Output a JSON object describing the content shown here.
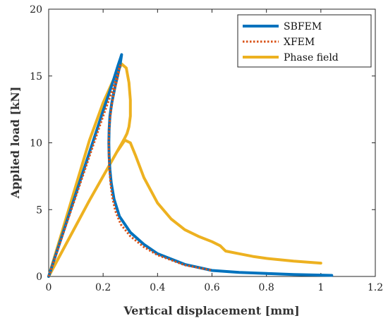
{
  "chart_data": {
    "type": "line",
    "xlabel": "Vertical displacement [mm]",
    "ylabel": "Applied load [kN]",
    "xlim": [
      0,
      1.2
    ],
    "ylim": [
      0,
      20
    ],
    "xticks": [
      0,
      0.2,
      0.4,
      0.6,
      0.8,
      1,
      1.2
    ],
    "yticks": [
      0,
      5,
      10,
      15,
      20
    ],
    "xtick_labels": [
      "0",
      "0.2",
      "0.4",
      "0.6",
      "0.8",
      "1",
      "1.2"
    ],
    "ytick_labels": [
      "0",
      "5",
      "10",
      "15",
      "20"
    ],
    "grid": false,
    "legend_position": "top-right",
    "series": [
      {
        "name": "SBFEM",
        "color": "#0072BD",
        "style": "solid",
        "x": [
          0,
          0.05,
          0.1,
          0.15,
          0.2,
          0.235,
          0.255,
          0.265,
          0.268,
          0.262,
          0.245,
          0.232,
          0.225,
          0.222,
          0.221,
          0.222,
          0.225,
          0.23,
          0.24,
          0.26,
          0.3,
          0.35,
          0.4,
          0.5,
          0.6,
          0.7,
          0.8,
          0.9,
          1.0,
          1.04
        ],
        "y": [
          0,
          3.1,
          6.2,
          9.3,
          12.4,
          14.5,
          15.8,
          16.4,
          16.6,
          15.8,
          14.3,
          13.0,
          12.0,
          11.0,
          10.0,
          9.0,
          8.0,
          7.0,
          5.8,
          4.5,
          3.3,
          2.4,
          1.7,
          0.9,
          0.45,
          0.3,
          0.22,
          0.15,
          0.1,
          0.08
        ]
      },
      {
        "name": "XFEM",
        "color": "#D95319",
        "style": "dotted",
        "x": [
          0,
          0.05,
          0.1,
          0.15,
          0.2,
          0.235,
          0.255,
          0.262,
          0.255,
          0.24,
          0.23,
          0.224,
          0.221,
          0.221,
          0.223,
          0.227,
          0.233,
          0.245,
          0.265,
          0.3,
          0.35,
          0.4,
          0.5,
          0.6
        ],
        "y": [
          0,
          3.0,
          6.0,
          9.0,
          12.0,
          14.0,
          15.3,
          15.8,
          15.0,
          13.8,
          12.6,
          11.5,
          10.3,
          9.2,
          8.1,
          7.0,
          6.0,
          4.9,
          3.9,
          3.0,
          2.2,
          1.6,
          0.85,
          0.45
        ]
      },
      {
        "name": "Phase field",
        "color": "#EDB120",
        "style": "solid",
        "x": [
          0,
          0.05,
          0.1,
          0.15,
          0.2,
          0.24,
          0.268,
          0.285,
          0.295,
          0.3,
          0.3,
          0.295,
          0.288,
          0.278,
          0.25,
          0.2,
          0.15,
          0.1,
          0.05,
          0,
          0.05,
          0.1,
          0.15,
          0.2,
          0.25,
          0.28,
          0.3,
          0.32,
          0.35,
          0.4,
          0.45,
          0.5,
          0.55,
          0.6,
          0.63,
          0.65,
          0.7,
          0.75,
          0.8,
          0.9,
          1.0
        ],
        "y": [
          0,
          3.4,
          6.8,
          10.2,
          13.0,
          14.8,
          15.9,
          15.6,
          14.5,
          13.2,
          12.0,
          11.2,
          10.7,
          10.3,
          9.3,
          7.5,
          5.7,
          3.8,
          1.9,
          0,
          1.9,
          3.8,
          5.7,
          7.5,
          9.3,
          10.2,
          10.0,
          9.0,
          7.4,
          5.5,
          4.3,
          3.5,
          3.0,
          2.6,
          2.3,
          1.9,
          1.7,
          1.5,
          1.35,
          1.15,
          1.0
        ]
      }
    ]
  }
}
